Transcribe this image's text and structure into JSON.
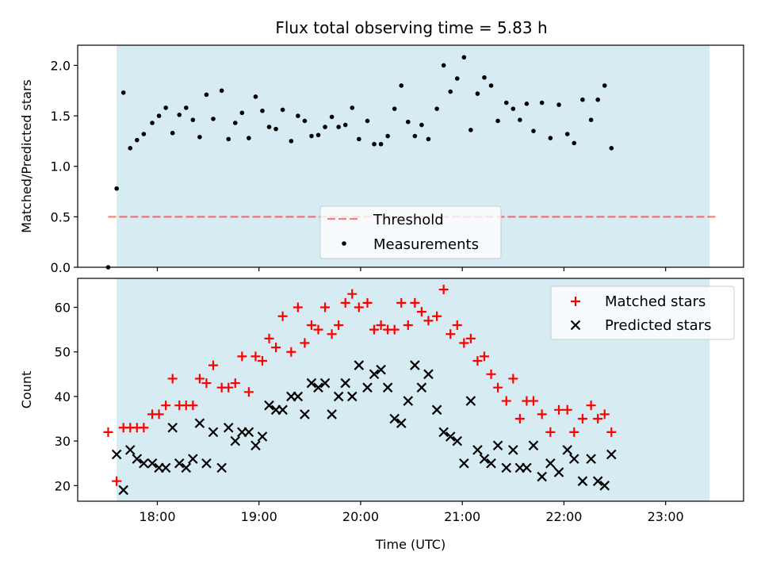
{
  "title": "Flux total observing time = 5.83 h",
  "colors": {
    "band": "#add8e6",
    "threshold": "#ff0000",
    "matched": "#ff0000",
    "predicted": "#000000",
    "measurement": "#000000"
  },
  "chart_data": [
    {
      "type": "scatter",
      "panel": "top",
      "ylabel": "Matched/Predicted stars",
      "ylim": [
        0,
        2.2
      ],
      "yticks": [
        0.0,
        0.5,
        1.0,
        1.5,
        2.0
      ],
      "ytick_labels": [
        "0.0",
        "0.5",
        "1.0",
        "1.5",
        "2.0"
      ],
      "xlim": [
        "17:13",
        "23:46"
      ],
      "xticks": [
        "18:00",
        "19:00",
        "20:00",
        "21:00",
        "22:00",
        "23:00"
      ],
      "observing_span": [
        "17:36",
        "23:26"
      ],
      "legend": "lower-center",
      "threshold": {
        "name": "Threshold",
        "value": 0.5,
        "x_range": [
          "17:31",
          "23:30"
        ]
      },
      "series": [
        {
          "name": "Measurements",
          "points": [
            [
              "17:31",
              0.0
            ],
            [
              "17:36",
              0.78
            ],
            [
              "17:40",
              1.73
            ],
            [
              "17:44",
              1.18
            ],
            [
              "17:48",
              1.26
            ],
            [
              "17:52",
              1.32
            ],
            [
              "17:57",
              1.43
            ],
            [
              "18:01",
              1.5
            ],
            [
              "18:05",
              1.58
            ],
            [
              "18:09",
              1.33
            ],
            [
              "18:13",
              1.51
            ],
            [
              "18:17",
              1.58
            ],
            [
              "18:21",
              1.46
            ],
            [
              "18:25",
              1.29
            ],
            [
              "18:29",
              1.71
            ],
            [
              "18:33",
              1.47
            ],
            [
              "18:38",
              1.75
            ],
            [
              "18:42",
              1.27
            ],
            [
              "18:46",
              1.43
            ],
            [
              "18:50",
              1.53
            ],
            [
              "18:54",
              1.28
            ],
            [
              "18:58",
              1.69
            ],
            [
              "19:02",
              1.55
            ],
            [
              "19:06",
              1.39
            ],
            [
              "19:10",
              1.37
            ],
            [
              "19:14",
              1.56
            ],
            [
              "19:19",
              1.25
            ],
            [
              "19:23",
              1.5
            ],
            [
              "19:27",
              1.45
            ],
            [
              "19:31",
              1.3
            ],
            [
              "19:35",
              1.31
            ],
            [
              "19:39",
              1.39
            ],
            [
              "19:43",
              1.49
            ],
            [
              "19:47",
              1.39
            ],
            [
              "19:51",
              1.41
            ],
            [
              "19:55",
              1.58
            ],
            [
              "19:59",
              1.27
            ],
            [
              "20:04",
              1.45
            ],
            [
              "20:08",
              1.22
            ],
            [
              "20:12",
              1.22
            ],
            [
              "20:16",
              1.3
            ],
            [
              "20:20",
              1.57
            ],
            [
              "20:24",
              1.8
            ],
            [
              "20:28",
              1.44
            ],
            [
              "20:32",
              1.3
            ],
            [
              "20:36",
              1.41
            ],
            [
              "20:40",
              1.27
            ],
            [
              "20:45",
              1.57
            ],
            [
              "20:49",
              2.0
            ],
            [
              "20:53",
              1.74
            ],
            [
              "20:57",
              1.87
            ],
            [
              "21:01",
              2.08
            ],
            [
              "21:05",
              1.36
            ],
            [
              "21:09",
              1.72
            ],
            [
              "21:13",
              1.88
            ],
            [
              "21:17",
              1.8
            ],
            [
              "21:21",
              1.45
            ],
            [
              "21:26",
              1.63
            ],
            [
              "21:30",
              1.57
            ],
            [
              "21:34",
              1.46
            ],
            [
              "21:38",
              1.62
            ],
            [
              "21:42",
              1.35
            ],
            [
              "21:47",
              1.63
            ],
            [
              "21:52",
              1.28
            ],
            [
              "21:57",
              1.61
            ],
            [
              "22:02",
              1.32
            ],
            [
              "22:06",
              1.23
            ],
            [
              "22:11",
              1.66
            ],
            [
              "22:16",
              1.46
            ],
            [
              "22:20",
              1.66
            ],
            [
              "22:24",
              1.8
            ],
            [
              "22:28",
              1.18
            ]
          ]
        }
      ]
    },
    {
      "type": "scatter",
      "panel": "bottom",
      "ylabel": "Count",
      "xlabel": "Time (UTC)",
      "ylim": [
        16.5,
        66.5
      ],
      "yticks": [
        20,
        30,
        40,
        50,
        60
      ],
      "ytick_labels": [
        "20",
        "30",
        "40",
        "50",
        "60"
      ],
      "xlim": [
        "17:13",
        "23:46"
      ],
      "xticks": [
        "18:00",
        "19:00",
        "20:00",
        "21:00",
        "22:00",
        "23:00"
      ],
      "xtick_labels": [
        "18:00",
        "19:00",
        "20:00",
        "21:00",
        "22:00",
        "23:00"
      ],
      "observing_span": [
        "17:36",
        "23:26"
      ],
      "legend": "top-right",
      "series": [
        {
          "name": "Matched stars",
          "marker": "+",
          "points": [
            [
              "17:31",
              32
            ],
            [
              "17:36",
              21
            ],
            [
              "17:40",
              33
            ],
            [
              "17:44",
              33
            ],
            [
              "17:48",
              33
            ],
            [
              "17:52",
              33
            ],
            [
              "17:57",
              36
            ],
            [
              "18:01",
              36
            ],
            [
              "18:05",
              38
            ],
            [
              "18:09",
              44
            ],
            [
              "18:13",
              38
            ],
            [
              "18:17",
              38
            ],
            [
              "18:21",
              38
            ],
            [
              "18:25",
              44
            ],
            [
              "18:29",
              43
            ],
            [
              "18:33",
              47
            ],
            [
              "18:38",
              42
            ],
            [
              "18:42",
              42
            ],
            [
              "18:46",
              43
            ],
            [
              "18:50",
              49
            ],
            [
              "18:54",
              41
            ],
            [
              "18:58",
              49
            ],
            [
              "19:02",
              48
            ],
            [
              "19:06",
              53
            ],
            [
              "19:10",
              51
            ],
            [
              "19:14",
              58
            ],
            [
              "19:19",
              50
            ],
            [
              "19:23",
              60
            ],
            [
              "19:27",
              52
            ],
            [
              "19:31",
              56
            ],
            [
              "19:35",
              55
            ],
            [
              "19:39",
              60
            ],
            [
              "19:43",
              54
            ],
            [
              "19:47",
              56
            ],
            [
              "19:51",
              61
            ],
            [
              "19:55",
              63
            ],
            [
              "19:59",
              60
            ],
            [
              "20:04",
              61
            ],
            [
              "20:08",
              55
            ],
            [
              "20:12",
              56
            ],
            [
              "20:16",
              55
            ],
            [
              "20:20",
              55
            ],
            [
              "20:24",
              61
            ],
            [
              "20:28",
              56
            ],
            [
              "20:32",
              61
            ],
            [
              "20:36",
              59
            ],
            [
              "20:40",
              57
            ],
            [
              "20:45",
              58
            ],
            [
              "20:49",
              64
            ],
            [
              "20:53",
              54
            ],
            [
              "20:57",
              56
            ],
            [
              "21:01",
              52
            ],
            [
              "21:05",
              53
            ],
            [
              "21:09",
              48
            ],
            [
              "21:13",
              49
            ],
            [
              "21:17",
              45
            ],
            [
              "21:21",
              42
            ],
            [
              "21:26",
              39
            ],
            [
              "21:30",
              44
            ],
            [
              "21:34",
              35
            ],
            [
              "21:38",
              39
            ],
            [
              "21:42",
              39
            ],
            [
              "21:47",
              36
            ],
            [
              "21:52",
              32
            ],
            [
              "21:57",
              37
            ],
            [
              "22:02",
              37
            ],
            [
              "22:06",
              32
            ],
            [
              "22:11",
              35
            ],
            [
              "22:16",
              38
            ],
            [
              "22:20",
              35
            ],
            [
              "22:24",
              36
            ],
            [
              "22:28",
              32
            ]
          ]
        },
        {
          "name": "Predicted stars",
          "marker": "x",
          "points": [
            [
              "17:36",
              27
            ],
            [
              "17:40",
              19
            ],
            [
              "17:44",
              28
            ],
            [
              "17:48",
              26
            ],
            [
              "17:52",
              25
            ],
            [
              "17:57",
              25
            ],
            [
              "18:01",
              24
            ],
            [
              "18:05",
              24
            ],
            [
              "18:09",
              33
            ],
            [
              "18:13",
              25
            ],
            [
              "18:17",
              24
            ],
            [
              "18:21",
              26
            ],
            [
              "18:25",
              34
            ],
            [
              "18:29",
              25
            ],
            [
              "18:33",
              32
            ],
            [
              "18:38",
              24
            ],
            [
              "18:42",
              33
            ],
            [
              "18:46",
              30
            ],
            [
              "18:50",
              32
            ],
            [
              "18:54",
              32
            ],
            [
              "18:58",
              29
            ],
            [
              "19:02",
              31
            ],
            [
              "19:06",
              38
            ],
            [
              "19:10",
              37
            ],
            [
              "19:14",
              37
            ],
            [
              "19:19",
              40
            ],
            [
              "19:23",
              40
            ],
            [
              "19:27",
              36
            ],
            [
              "19:31",
              43
            ],
            [
              "19:35",
              42
            ],
            [
              "19:39",
              43
            ],
            [
              "19:43",
              36
            ],
            [
              "19:47",
              40
            ],
            [
              "19:51",
              43
            ],
            [
              "19:55",
              40
            ],
            [
              "19:59",
              47
            ],
            [
              "20:04",
              42
            ],
            [
              "20:08",
              45
            ],
            [
              "20:12",
              46
            ],
            [
              "20:16",
              42
            ],
            [
              "20:20",
              35
            ],
            [
              "20:24",
              34
            ],
            [
              "20:28",
              39
            ],
            [
              "20:32",
              47
            ],
            [
              "20:36",
              42
            ],
            [
              "20:40",
              45
            ],
            [
              "20:45",
              37
            ],
            [
              "20:49",
              32
            ],
            [
              "20:53",
              31
            ],
            [
              "20:57",
              30
            ],
            [
              "21:01",
              25
            ],
            [
              "21:05",
              39
            ],
            [
              "21:09",
              28
            ],
            [
              "21:13",
              26
            ],
            [
              "21:17",
              25
            ],
            [
              "21:21",
              29
            ],
            [
              "21:26",
              24
            ],
            [
              "21:30",
              28
            ],
            [
              "21:34",
              24
            ],
            [
              "21:38",
              24
            ],
            [
              "21:42",
              29
            ],
            [
              "21:47",
              22
            ],
            [
              "21:52",
              25
            ],
            [
              "21:57",
              23
            ],
            [
              "22:02",
              28
            ],
            [
              "22:06",
              26
            ],
            [
              "22:11",
              21
            ],
            [
              "22:16",
              26
            ],
            [
              "22:20",
              21
            ],
            [
              "22:24",
              20
            ],
            [
              "22:28",
              27
            ]
          ]
        }
      ]
    }
  ]
}
